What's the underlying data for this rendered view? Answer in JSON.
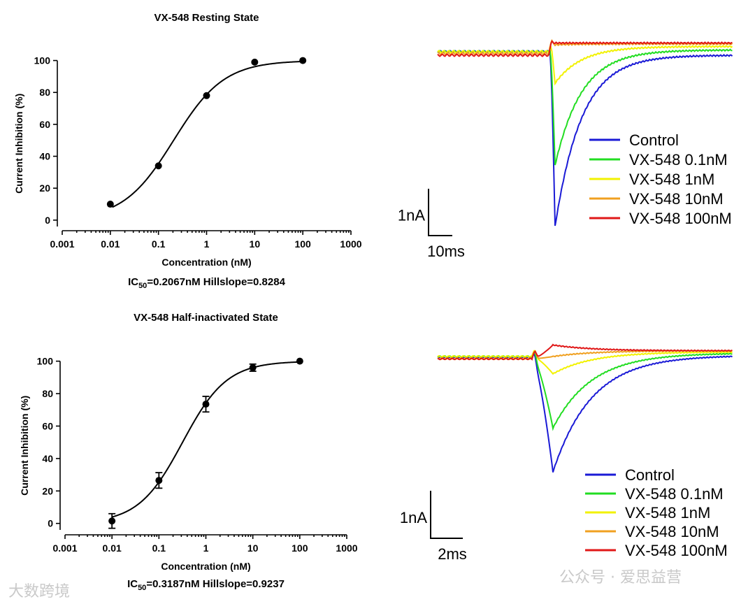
{
  "chart_data": [
    {
      "type": "scatter",
      "panel": "resting-dose-response",
      "title": "VX-548 Resting State",
      "xlabel": "Concentration (nM)",
      "ylabel": "Current Inhibition (%)",
      "xscale": "log",
      "xlim": [
        0.001,
        1000
      ],
      "ylim": [
        -4,
        102
      ],
      "xticks": [
        0.001,
        0.01,
        0.1,
        1,
        10,
        100,
        1000
      ],
      "xtick_labels": [
        "0.001",
        "0.01",
        "0.1",
        "1",
        "10",
        "100",
        "1000"
      ],
      "yticks": [
        0,
        20,
        40,
        60,
        80,
        100
      ],
      "ytick_labels": [
        "0",
        "20",
        "40",
        "60",
        "80",
        "100"
      ],
      "series": [
        {
          "x": [
            0.01,
            0.1,
            1,
            10,
            100
          ],
          "y": [
            10,
            34,
            78,
            99,
            100
          ]
        }
      ],
      "fit": {
        "ic50": 0.2067,
        "hill": 0.8284,
        "x_from": 0.011,
        "x_to": 100
      },
      "annotation": {
        "prefix": "IC",
        "sub": "50",
        "suffix": "=0.2067nM Hillslope=0.8284"
      },
      "grid": false
    },
    {
      "type": "line",
      "panel": "resting-traces",
      "legend_position": "lower-right",
      "scale_bar": {
        "y_label": "1nA",
        "x_label": "10ms"
      },
      "series": [
        {
          "name": "Control",
          "color": "#1a1ad6",
          "base": 0,
          "peak": -100,
          "end": -2
        },
        {
          "name": "VX-548 0.1nM",
          "color": "#22dd22",
          "base": 0,
          "peak": -65,
          "end": 1
        },
        {
          "name": "VX-548 1nM",
          "color": "#f2f200",
          "base": 0,
          "peak": -18,
          "end": 3
        },
        {
          "name": "VX-548 10nM",
          "color": "#f0a020",
          "base": -1,
          "peak": 4,
          "end": 4.5
        },
        {
          "name": "VX-548 100nM",
          "color": "#e01818",
          "base": -2,
          "peak": 5,
          "end": 5
        }
      ]
    },
    {
      "type": "scatter",
      "panel": "half-inactivated-dose-response",
      "title": "VX-548 Half-inactivated State",
      "xlabel": "Concentration (nM)",
      "ylabel": "Current Inhibition (%)",
      "xscale": "log",
      "xlim": [
        0.001,
        1000
      ],
      "ylim": [
        -4,
        102
      ],
      "xticks": [
        0.001,
        0.01,
        0.1,
        1,
        10,
        100,
        1000
      ],
      "xtick_labels": [
        "0.001",
        "0.01",
        "0.1",
        "1",
        "10",
        "100",
        "1000"
      ],
      "yticks": [
        0,
        20,
        40,
        60,
        80,
        100
      ],
      "ytick_labels": [
        "0",
        "20",
        "40",
        "60",
        "80",
        "100"
      ],
      "series": [
        {
          "x": [
            0.01,
            0.1,
            1,
            10,
            100
          ],
          "y": [
            1.5,
            26.5,
            73.5,
            96,
            100
          ],
          "yerr": [
            4.5,
            4.8,
            4.8,
            2.2,
            0
          ]
        }
      ],
      "fit": {
        "ic50": 0.3187,
        "hill": 0.9237,
        "x_from": 0.01,
        "x_to": 100
      },
      "annotation": {
        "prefix": "IC",
        "sub": "50",
        "suffix": "=0.3187nM Hillslope=0.9237"
      },
      "grid": false
    },
    {
      "type": "line",
      "panel": "half-inactivated-traces",
      "legend_position": "lower-right",
      "scale_bar": {
        "y_label": "1nA",
        "x_label": "2ms"
      },
      "series": [
        {
          "name": "Control",
          "color": "#1a1ad6",
          "base": -1,
          "peak": -100,
          "end": 1
        },
        {
          "name": "VX-548 0.1nM",
          "color": "#22dd22",
          "base": 0,
          "peak": -62,
          "end": 3
        },
        {
          "name": "VX-548 1nM",
          "color": "#f2f200",
          "base": 0,
          "peak": -15,
          "end": 4
        },
        {
          "name": "VX-548 10nM",
          "color": "#f0a020",
          "base": -2,
          "peak": 0,
          "end": 5
        },
        {
          "name": "VX-548 100nM",
          "color": "#e01818",
          "base": -2,
          "peak": 10,
          "end": 5
        }
      ]
    }
  ],
  "watermarks": {
    "bottom_left": "大数跨境",
    "bottom_right": "公众号 · 爱思益营"
  }
}
